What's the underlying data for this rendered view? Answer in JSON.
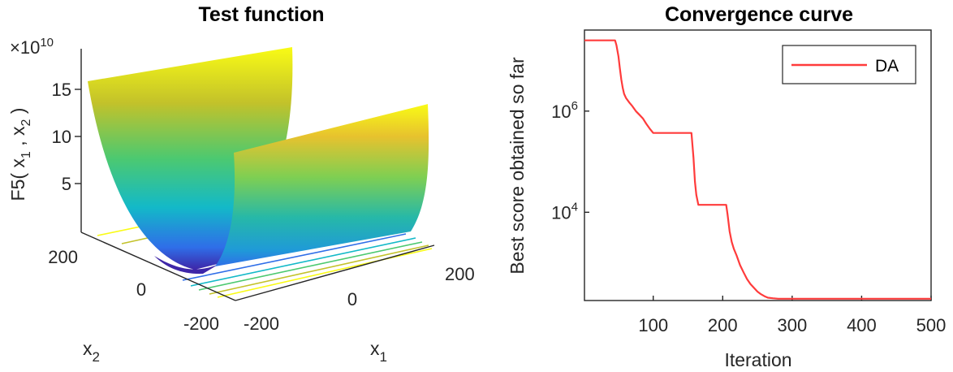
{
  "chart_data": [
    {
      "type": "surface",
      "title": "Test function",
      "xlabel": "x",
      "xlabel_sub": "1",
      "ylabel": "x",
      "ylabel_sub": "2",
      "zlabel": {
        "prefix": "F5( x",
        "sub1": "1",
        "mid": " , x",
        "sub2": "2",
        "suffix": " )"
      },
      "exponent": {
        "base": "×10",
        "power": "10"
      },
      "x_ticks": [
        "-200",
        "0",
        "200"
      ],
      "y_ticks": [
        "200",
        "0",
        "-200"
      ],
      "z_ticks": [
        "15",
        "10",
        "5"
      ],
      "colormap": [
        "#3e26a8",
        "#2f6ee8",
        "#13b9c8",
        "#4cc970",
        "#c3c22a",
        "#f9fb15"
      ]
    },
    {
      "type": "line",
      "title": "Convergence curve",
      "xlabel": "Iteration",
      "ylabel": "Best score obtained so far",
      "yscale": "log",
      "xlim": [
        1,
        500
      ],
      "ylim": [
        180,
        40000000
      ],
      "x_ticks": [
        100,
        200,
        300,
        400,
        500
      ],
      "y_ticks": [
        {
          "value": 10000,
          "base": "10",
          "power": "4"
        },
        {
          "value": 1000000,
          "base": "10",
          "power": "6"
        }
      ],
      "legend_position": "top-right",
      "series": [
        {
          "name": "DA",
          "color": "#ff3b3b",
          "x": [
            1,
            45,
            47,
            50,
            52,
            54,
            56,
            58,
            61,
            66,
            70,
            75,
            80,
            85,
            90,
            95,
            100,
            155,
            158,
            160,
            162,
            165,
            205,
            207,
            210,
            213,
            216,
            220,
            225,
            230,
            235,
            240,
            245,
            250,
            255,
            260,
            265,
            272,
            280,
            500
          ],
          "y": [
            25000000,
            25000000,
            20000000,
            12000000,
            7000000,
            4200000,
            2900000,
            2200000,
            1800000,
            1450000,
            1250000,
            1000000,
            850000,
            720000,
            560000,
            450000,
            370000,
            370000,
            120000,
            40000,
            22000,
            14000,
            14000,
            9000,
            4200,
            2600,
            1900,
            1400,
            900,
            650,
            480,
            380,
            320,
            270,
            240,
            220,
            205,
            200,
            195,
            195
          ]
        }
      ]
    }
  ]
}
